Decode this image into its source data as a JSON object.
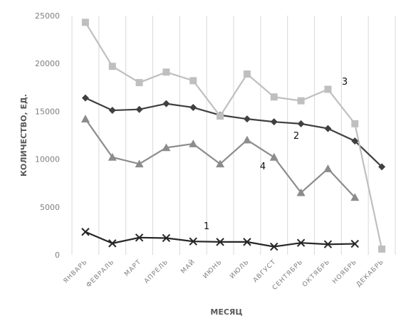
{
  "chart_data": {
    "type": "line",
    "title": "",
    "xlabel": "МЕСЯЦ",
    "ylabel": "КОЛИЧЕСТВО, ЕД.",
    "ylim": [
      0,
      25000
    ],
    "yticks": [
      "0",
      "5000",
      "10000",
      "15000",
      "20000",
      "25000"
    ],
    "grid": "vertical",
    "categories": [
      "ЯНВАРЬ",
      "ФЕВРАЛЬ",
      "МАРТ",
      "АПРЕЛЬ",
      "МАЙ",
      "ИЮНЬ",
      "ИЮЛЬ",
      "АВГУСТ",
      "СЕНТЯБРЬ",
      "ОКТЯБРЬ",
      "НОЯБРЬ",
      "ДЕКАБРЬ"
    ],
    "series": [
      {
        "name": "1",
        "marker": "x",
        "color": "#262626",
        "values": [
          2400,
          1200,
          1800,
          1750,
          1400,
          1350,
          1350,
          850,
          1250,
          1100,
          1150,
          null
        ]
      },
      {
        "name": "2",
        "marker": "diamond",
        "color": "#404040",
        "values": [
          16400,
          15100,
          15200,
          15800,
          15400,
          14600,
          14200,
          13900,
          13700,
          13200,
          11900,
          9200
        ]
      },
      {
        "name": "3",
        "marker": "square",
        "color": "#bfbfbf",
        "values": [
          24300,
          19700,
          18000,
          19100,
          18200,
          14500,
          18900,
          16500,
          16100,
          17300,
          13700,
          600
        ]
      },
      {
        "name": "4",
        "marker": "triangle",
        "color": "#8c8c8c",
        "values": [
          14200,
          10200,
          9500,
          11200,
          11600,
          9500,
          12000,
          10200,
          6500,
          9000,
          6000,
          null
        ]
      }
    ]
  }
}
